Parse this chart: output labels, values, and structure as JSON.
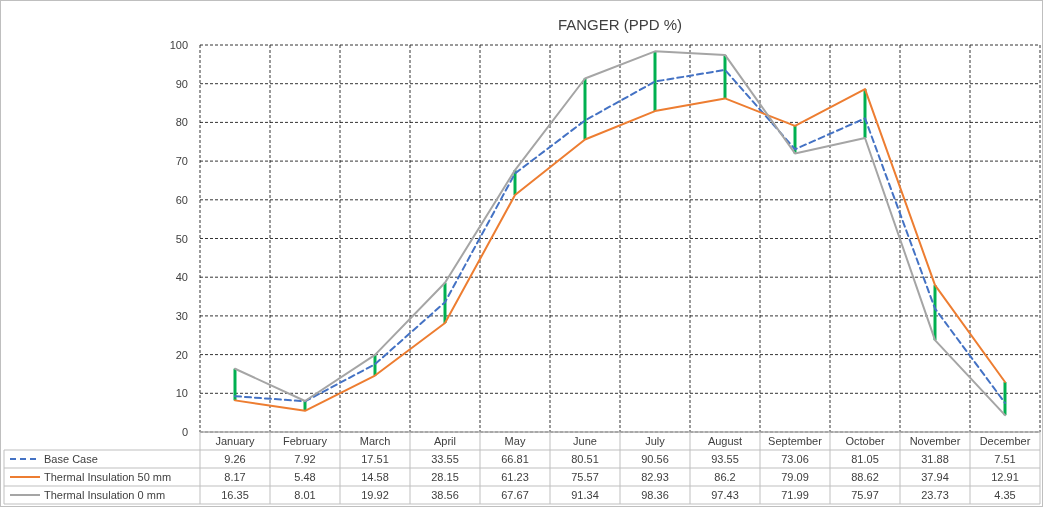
{
  "chart_data": {
    "type": "line",
    "title": "FANGER (PPD %)",
    "categories": [
      "January",
      "February",
      "March",
      "April",
      "May",
      "June",
      "July",
      "August",
      "September",
      "October",
      "November",
      "December"
    ],
    "series": [
      {
        "name": "Base Case",
        "color": "#4472c4",
        "line_style": "dashed",
        "values": [
          9.26,
          7.92,
          17.51,
          33.55,
          66.81,
          80.51,
          90.56,
          93.55,
          73.06,
          81.05,
          31.88,
          7.51
        ],
        "errors": [
          [
            8.17,
            16.35
          ],
          [
            5.48,
            8.01
          ],
          [
            14.58,
            19.92
          ],
          [
            28.15,
            38.56
          ],
          [
            61.23,
            67.67
          ],
          [
            75.57,
            91.34
          ],
          [
            82.93,
            98.36
          ],
          [
            86.2,
            97.43
          ],
          [
            71.99,
            79.09
          ],
          [
            75.97,
            88.62
          ],
          [
            23.73,
            37.94
          ],
          [
            4.35,
            12.91
          ]
        ]
      },
      {
        "name": "Thermal Insulation 50 mm",
        "color": "#ed7d31",
        "line_style": "solid",
        "values": [
          8.17,
          5.48,
          14.58,
          28.15,
          61.23,
          75.57,
          82.93,
          86.2,
          79.09,
          88.62,
          37.94,
          12.91
        ]
      },
      {
        "name": "Thermal Insulation 0 mm",
        "color": "#a5a5a5",
        "line_style": "solid",
        "values": [
          16.35,
          8.01,
          19.92,
          38.56,
          67.67,
          91.34,
          98.36,
          97.43,
          71.99,
          75.97,
          23.73,
          4.35
        ]
      }
    ],
    "ylim": [
      0,
      100
    ],
    "yticks": [
      0,
      10,
      20,
      30,
      40,
      50,
      60,
      70,
      80,
      90,
      100
    ],
    "grid": true,
    "legend": "bottom",
    "data_labels": true,
    "marker": "none"
  }
}
